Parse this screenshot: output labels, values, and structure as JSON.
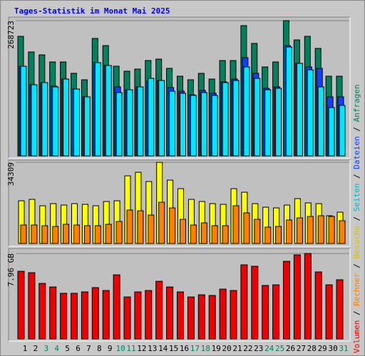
{
  "chart_data": {
    "type": "bar",
    "title": "Tages-Statistik im Monat Mai 2025",
    "title_color": "#0000ff",
    "categories": [
      "1",
      "2",
      "3",
      "4",
      "5",
      "6",
      "7",
      "8",
      "9",
      "10",
      "11",
      "12",
      "13",
      "14",
      "15",
      "16",
      "17",
      "18",
      "19",
      "20",
      "21",
      "22",
      "23",
      "24",
      "25",
      "26",
      "27",
      "28",
      "29",
      "30",
      "31"
    ],
    "category_colors": [
      "#000000",
      "#000000",
      "#008060",
      "#008060",
      "#000000",
      "#000000",
      "#000000",
      "#000000",
      "#000000",
      "#008060",
      "#008060",
      "#000000",
      "#000000",
      "#000000",
      "#000000",
      "#000000",
      "#008060",
      "#008060",
      "#000000",
      "#000000",
      "#000000",
      "#000000",
      "#000000",
      "#008060",
      "#008060",
      "#000000",
      "#000000",
      "#000000",
      "#000000",
      "#000000",
      "#008060"
    ],
    "legend_separator": " / ",
    "panels": [
      {
        "ylim": [
          0,
          268723
        ],
        "yticks": [
          268723
        ],
        "series": [
          {
            "name": "Anfragen",
            "color": "#00805c",
            "text_color": "#00805c",
            "values": [
              237600,
              206500,
              200800,
              186700,
              186700,
              164100,
              151300,
              233400,
              219200,
              178200,
              168300,
              172500,
              189500,
              192300,
              174000,
              158400,
              151300,
              164100,
              152700,
              189500,
              189500,
              258800,
              223500,
              176800,
              186700,
              268723,
              230500,
              237600,
              213600,
              158400,
              158400
            ]
          },
          {
            "name": "Dateien",
            "color": "#1040ff",
            "text_color": "#1040ff",
            "values": [
              178200,
              141400,
              145700,
              138600,
              152700,
              132900,
              117400,
              185300,
              179600,
              137200,
              131500,
              137200,
              148500,
              149900,
              135800,
              128700,
              121600,
              130100,
              124500,
              147100,
              152700,
              195200,
              164100,
              134400,
              137200,
              219200,
              183900,
              176800,
              174000,
              117400,
              117400
            ]
          },
          {
            "name": "Seiten",
            "color": "#00e8ff",
            "text_color": "#00b8d0",
            "values": [
              178200,
              141400,
              145700,
              137200,
              152700,
              132900,
              117400,
              185300,
              179600,
              125900,
              131500,
              137200,
              154200,
              149900,
              128700,
              124500,
              120200,
              125900,
              120200,
              145700,
              149900,
              176800,
              154200,
              131500,
              134400,
              216400,
              183900,
              171100,
              137200,
              96200,
              100400
            ]
          }
        ]
      },
      {
        "ylim": [
          0,
          34309
        ],
        "yticks": [
          34309
        ],
        "series": [
          {
            "name": "Besuche",
            "color": "#ffff00",
            "text_color": "#d8c000",
            "values": [
              18060,
              18660,
              15950,
              16860,
              16250,
              16860,
              16560,
              15950,
              17760,
              18060,
              28600,
              30100,
              26190,
              34309,
              26790,
              23180,
              18660,
              17760,
              16860,
              16560,
              23180,
              21670,
              16860,
              15350,
              15050,
              16250,
              18960,
              17160,
              16860,
              11740,
              13240
            ]
          },
          {
            "name": "Rechner",
            "color": "#ff8000",
            "text_color": "#ff8000",
            "values": [
              7830,
              7830,
              7530,
              7220,
              8130,
              7830,
              7530,
              7530,
              8130,
              9330,
              14150,
              13850,
              12040,
              17460,
              15050,
              10230,
              7830,
              8730,
              7530,
              7530,
              15950,
              12940,
              10230,
              6920,
              7220,
              9930,
              10840,
              11440,
              11740,
              11440,
              9630
            ]
          }
        ]
      },
      {
        "ylim": [
          0,
          7.96
        ],
        "yticks": [
          {
            "value": 7.96,
            "label": "7.96 GB"
          }
        ],
        "series": [
          {
            "name": "Volumen",
            "color": "#ee0000",
            "text_color": "#ee0000",
            "values": [
              6.3,
              6.17,
              5.17,
              4.84,
              4.25,
              4.25,
              4.38,
              4.78,
              4.51,
              5.97,
              3.91,
              4.38,
              4.51,
              5.37,
              4.84,
              4.38,
              3.91,
              4.11,
              4.05,
              4.64,
              4.51,
              6.9,
              6.77,
              4.98,
              5.04,
              7.23,
              7.83,
              7.96,
              6.24,
              5.04,
              5.51
            ]
          }
        ]
      }
    ]
  }
}
